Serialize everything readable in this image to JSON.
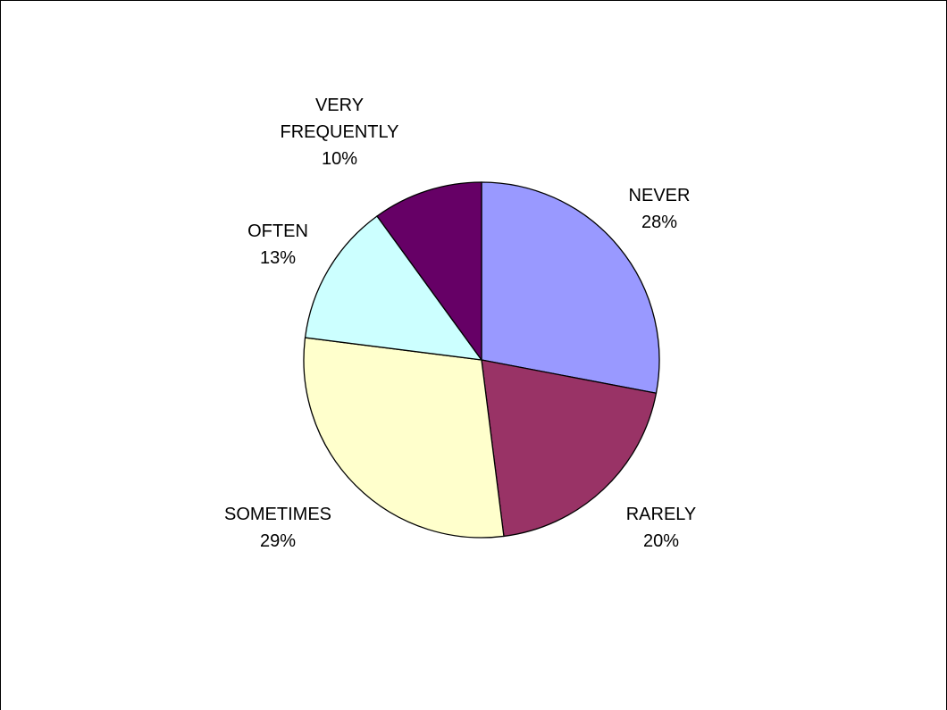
{
  "chart_data": {
    "type": "pie",
    "title": "",
    "slices": [
      {
        "label_lines": [
          "NEVER"
        ],
        "percent_label": "28%",
        "value": 28,
        "color": "#9999ff"
      },
      {
        "label_lines": [
          "RARELY"
        ],
        "percent_label": "20%",
        "value": 20,
        "color": "#993366"
      },
      {
        "label_lines": [
          "SOMETIMES"
        ],
        "percent_label": "29%",
        "value": 29,
        "color": "#ffffcc"
      },
      {
        "label_lines": [
          "OFTEN"
        ],
        "percent_label": "13%",
        "value": 13,
        "color": "#ccffff"
      },
      {
        "label_lines": [
          "VERY",
          "FREQUENTLY"
        ],
        "percent_label": "10%",
        "value": 10,
        "color": "#660066"
      }
    ],
    "start_angle": "12 o'clock",
    "direction": "clockwise",
    "legend": "none",
    "slice_outline_color": "#000000"
  }
}
